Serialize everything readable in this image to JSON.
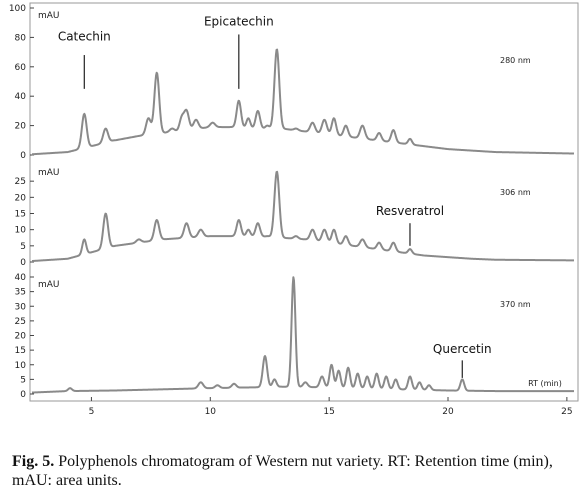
{
  "caption": {
    "fig_label": "Fig. 5.",
    "text": " Polyphenols chromatogram of Western nut variety. RT: Retention time (min), mAU: area units."
  },
  "colors": {
    "trace": "#8a8a8a",
    "axis": "#444444",
    "frame": "#9a9a9a"
  },
  "chart_data": {
    "type": "line",
    "x_axis": {
      "label": "RT (min)",
      "range": [
        2.5,
        25.3
      ],
      "ticks": [
        5,
        10,
        15,
        20,
        25
      ],
      "tick_labels": [
        "5",
        "10",
        "15",
        "20",
        "25"
      ]
    },
    "panels": [
      {
        "wavelength": "280 nm",
        "unit": "mAU",
        "ylim": [
          0,
          100
        ],
        "yticks": [
          0,
          20,
          40,
          60,
          80,
          100
        ],
        "baseline": [
          [
            2.5,
            0.5
          ],
          [
            4.0,
            2
          ],
          [
            5.0,
            6
          ],
          [
            6,
            10
          ],
          [
            7,
            13
          ],
          [
            8,
            15
          ],
          [
            9,
            17
          ],
          [
            10,
            19
          ],
          [
            11,
            19
          ],
          [
            12,
            18
          ],
          [
            13,
            18
          ],
          [
            14,
            16
          ],
          [
            15,
            14
          ],
          [
            16,
            12
          ],
          [
            17,
            10
          ],
          [
            18,
            8
          ],
          [
            19,
            6
          ],
          [
            20,
            4
          ],
          [
            21,
            3
          ],
          [
            22,
            2
          ],
          [
            25.3,
            1
          ]
        ],
        "peaks": [
          [
            4.7,
            28,
            0.1
          ],
          [
            5.6,
            18,
            0.1
          ],
          [
            6.0,
            10,
            0.08
          ],
          [
            7.0,
            8,
            0.1
          ],
          [
            7.4,
            25,
            0.1
          ],
          [
            7.75,
            56,
            0.1
          ],
          [
            8.4,
            18,
            0.1
          ],
          [
            8.8,
            25,
            0.09
          ],
          [
            9.0,
            30,
            0.1
          ],
          [
            9.4,
            24,
            0.1
          ],
          [
            10.1,
            22,
            0.1
          ],
          [
            10.6,
            15,
            0.08
          ],
          [
            11.2,
            37,
            0.09
          ],
          [
            11.6,
            25,
            0.08
          ],
          [
            12.0,
            30,
            0.09
          ],
          [
            12.4,
            20,
            0.08
          ],
          [
            12.8,
            72,
            0.1
          ],
          [
            13.6,
            18,
            0.09
          ],
          [
            14.3,
            22,
            0.1
          ],
          [
            14.8,
            24,
            0.1
          ],
          [
            15.2,
            25,
            0.09
          ],
          [
            15.7,
            20,
            0.09
          ],
          [
            16.4,
            20,
            0.1
          ],
          [
            17.1,
            15,
            0.09
          ],
          [
            17.7,
            17,
            0.09
          ],
          [
            18.4,
            11,
            0.08
          ]
        ],
        "annotations": [
          {
            "label": "Catechin",
            "x": 4.7,
            "y_text": 78,
            "y_top": 68,
            "y_bottom": 45
          },
          {
            "label": "Epicatechin",
            "x": 11.2,
            "y_text": 88,
            "y_top": 82,
            "y_bottom": 45
          }
        ]
      },
      {
        "wavelength": "306 nm",
        "unit": "mAU",
        "ylim": [
          0,
          30
        ],
        "yticks": [
          0,
          5,
          10,
          15,
          20,
          25
        ],
        "baseline": [
          [
            2.5,
            0.3
          ],
          [
            4.0,
            1
          ],
          [
            5,
            3
          ],
          [
            6,
            5
          ],
          [
            7,
            6
          ],
          [
            8,
            7
          ],
          [
            9,
            7.5
          ],
          [
            10,
            8
          ],
          [
            11,
            8
          ],
          [
            12,
            8
          ],
          [
            13,
            7.5
          ],
          [
            14,
            7
          ],
          [
            15,
            6
          ],
          [
            16,
            5
          ],
          [
            17,
            4
          ],
          [
            18,
            3
          ],
          [
            19,
            2
          ],
          [
            20,
            1.5
          ],
          [
            21,
            1
          ],
          [
            22,
            0.7
          ],
          [
            25.3,
            0.5
          ]
        ],
        "peaks": [
          [
            4.7,
            7,
            0.08
          ],
          [
            5.6,
            15,
            0.1
          ],
          [
            7.0,
            7,
            0.1
          ],
          [
            7.75,
            13,
            0.1
          ],
          [
            8.6,
            6,
            0.1
          ],
          [
            9.0,
            12,
            0.1
          ],
          [
            9.6,
            10,
            0.1
          ],
          [
            10.4,
            8,
            0.1
          ],
          [
            11.2,
            13,
            0.09
          ],
          [
            11.6,
            10,
            0.08
          ],
          [
            12.0,
            12,
            0.09
          ],
          [
            12.4,
            8,
            0.08
          ],
          [
            12.8,
            28,
            0.1
          ],
          [
            13.6,
            8,
            0.09
          ],
          [
            14.3,
            10,
            0.1
          ],
          [
            14.8,
            10,
            0.1
          ],
          [
            15.2,
            10,
            0.09
          ],
          [
            15.7,
            8,
            0.09
          ],
          [
            16.4,
            7,
            0.1
          ],
          [
            17.1,
            6,
            0.09
          ],
          [
            17.7,
            6,
            0.09
          ],
          [
            18.4,
            4,
            0.08
          ]
        ],
        "annotations": [
          {
            "label": "Resveratrol",
            "x": 18.4,
            "y_text": 14.5,
            "y_top": 12,
            "y_bottom": 5
          }
        ]
      },
      {
        "wavelength": "370 nm",
        "unit": "mAU",
        "ylim": [
          0,
          40
        ],
        "yticks": [
          0,
          5,
          10,
          15,
          20,
          25,
          30,
          35,
          40
        ],
        "baseline": [
          [
            2.5,
            0.5
          ],
          [
            4.0,
            1
          ],
          [
            6,
            1.2
          ],
          [
            8,
            1.6
          ],
          [
            10,
            2
          ],
          [
            12,
            2.3
          ],
          [
            13,
            2.5
          ],
          [
            14,
            2.4
          ],
          [
            15,
            2.2
          ],
          [
            16,
            2
          ],
          [
            18,
            1.6
          ],
          [
            20,
            1.2
          ],
          [
            22,
            1
          ],
          [
            25.3,
            1
          ]
        ],
        "peaks": [
          [
            4.1,
            2,
            0.08
          ],
          [
            9.6,
            4,
            0.1
          ],
          [
            10.3,
            3,
            0.09
          ],
          [
            11.0,
            3.5,
            0.09
          ],
          [
            12.3,
            13,
            0.09
          ],
          [
            12.7,
            5,
            0.08
          ],
          [
            13.5,
            40,
            0.08
          ],
          [
            14.0,
            4,
            0.09
          ],
          [
            14.7,
            6,
            0.09
          ],
          [
            15.1,
            10,
            0.08
          ],
          [
            15.4,
            8,
            0.08
          ],
          [
            15.8,
            9,
            0.08
          ],
          [
            16.2,
            7,
            0.08
          ],
          [
            16.6,
            6,
            0.08
          ],
          [
            17.0,
            7,
            0.08
          ],
          [
            17.4,
            6,
            0.08
          ],
          [
            17.8,
            5,
            0.08
          ],
          [
            18.4,
            6,
            0.08
          ],
          [
            18.8,
            4,
            0.08
          ],
          [
            19.2,
            3,
            0.08
          ],
          [
            20.6,
            5,
            0.08
          ]
        ],
        "annotations": [
          {
            "label": "Quercetin",
            "x": 20.6,
            "y_text": 14,
            "y_top": 11.5,
            "y_bottom": 5.5
          }
        ]
      }
    ]
  }
}
